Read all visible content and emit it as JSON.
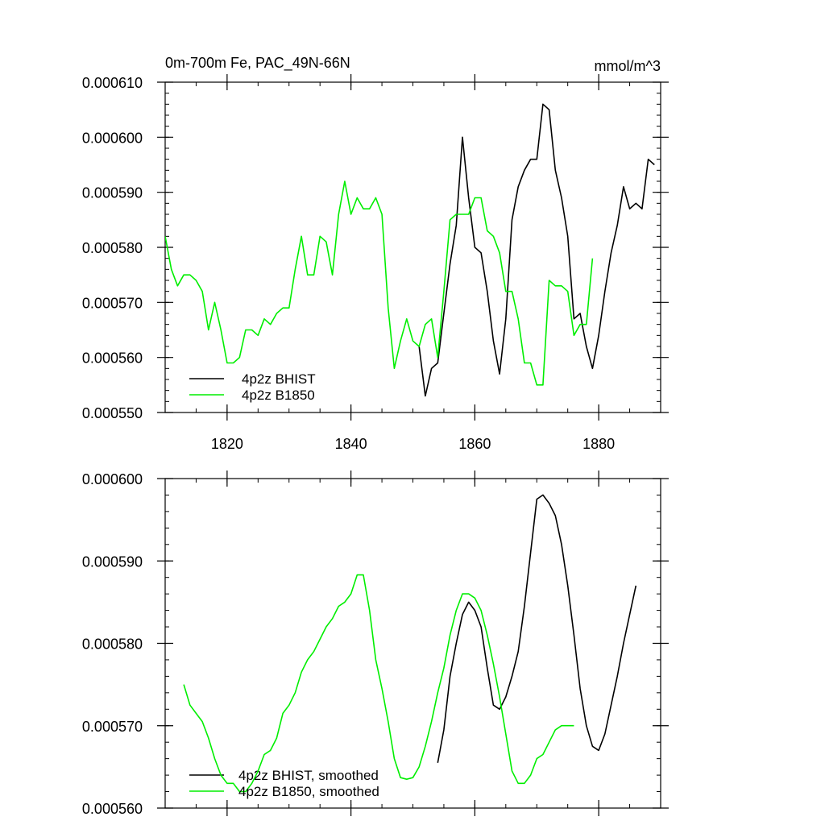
{
  "figure": {
    "title": "0m-700m Fe, PAC_49N-66N",
    "units": "mmol/m^3"
  },
  "chart_data": [
    {
      "type": "line",
      "title": "0m-700m Fe, PAC_49N-66N",
      "units_label": "mmol/m^3",
      "xlabel": "",
      "ylabel": "",
      "xlim": [
        1810,
        1890
      ],
      "ylim": [
        0.00055,
        0.00061
      ],
      "x_ticks": [
        1820,
        1840,
        1860,
        1880
      ],
      "x_tick_labels": [
        "1820",
        "1840",
        "1860",
        "1880"
      ],
      "y_ticks": [
        0.00055,
        0.00056,
        0.00057,
        0.00058,
        0.00059,
        0.0006,
        0.00061
      ],
      "y_tick_labels": [
        "0.000550",
        "0.000560",
        "0.000570",
        "0.000580",
        "0.000590",
        "0.000600",
        "0.000610"
      ],
      "legend_position": "bottom-left",
      "series": [
        {
          "name": "4p2z BHIST",
          "color": "#000000",
          "x": [
            1851,
            1852,
            1853,
            1854,
            1855,
            1856,
            1857,
            1858,
            1859,
            1860,
            1861,
            1862,
            1863,
            1864,
            1865,
            1866,
            1867,
            1868,
            1869,
            1870,
            1871,
            1872,
            1873,
            1874,
            1875,
            1876,
            1877,
            1878,
            1879,
            1880,
            1881,
            1882,
            1883,
            1884,
            1885,
            1886,
            1887,
            1888,
            1889
          ],
          "y": [
            0.000562,
            0.000553,
            0.000558,
            0.000559,
            0.000568,
            0.000577,
            0.000584,
            0.0006,
            0.000589,
            0.00058,
            0.000579,
            0.000572,
            0.000563,
            0.000557,
            0.000567,
            0.000585,
            0.000591,
            0.000594,
            0.000596,
            0.000596,
            0.000606,
            0.000605,
            0.000594,
            0.000589,
            0.000582,
            0.000567,
            0.000568,
            0.000562,
            0.000558,
            0.000564,
            0.000572,
            0.000579,
            0.000584,
            0.000591,
            0.000587,
            0.000588,
            0.000587,
            0.000596,
            0.000595
          ]
        },
        {
          "name": "4p2z B1850",
          "color": "#00ee00",
          "x": [
            1810,
            1811,
            1812,
            1813,
            1814,
            1815,
            1816,
            1817,
            1818,
            1819,
            1820,
            1821,
            1822,
            1823,
            1824,
            1825,
            1826,
            1827,
            1828,
            1829,
            1830,
            1831,
            1832,
            1833,
            1834,
            1835,
            1836,
            1837,
            1838,
            1839,
            1840,
            1841,
            1842,
            1843,
            1844,
            1845,
            1846,
            1847,
            1848,
            1849,
            1850,
            1851,
            1852,
            1853,
            1854,
            1855,
            1856,
            1857,
            1858,
            1859,
            1860,
            1861,
            1862,
            1863,
            1864,
            1865,
            1866,
            1867,
            1868,
            1869,
            1870,
            1871,
            1872,
            1873,
            1874,
            1875,
            1876,
            1877,
            1878,
            1879
          ],
          "y": [
            0.000582,
            0.000576,
            0.000573,
            0.000575,
            0.000575,
            0.000574,
            0.000572,
            0.000565,
            0.00057,
            0.000565,
            0.000559,
            0.000559,
            0.00056,
            0.000565,
            0.000565,
            0.000564,
            0.000567,
            0.000566,
            0.000568,
            0.000569,
            0.000569,
            0.000576,
            0.000582,
            0.000575,
            0.000575,
            0.000582,
            0.000581,
            0.000575,
            0.000586,
            0.000592,
            0.000586,
            0.000589,
            0.000587,
            0.000587,
            0.000589,
            0.000586,
            0.000569,
            0.000558,
            0.000563,
            0.000567,
            0.000563,
            0.000562,
            0.000566,
            0.000567,
            0.00056,
            0.000572,
            0.000585,
            0.000586,
            0.000586,
            0.000586,
            0.000589,
            0.000589,
            0.000583,
            0.000582,
            0.000579,
            0.000572,
            0.000572,
            0.000567,
            0.000559,
            0.000559,
            0.000555,
            0.000555,
            0.000574,
            0.000573,
            0.000573,
            0.000572,
            0.000564,
            0.000566,
            0.000566,
            0.000578
          ]
        }
      ]
    },
    {
      "type": "line",
      "title": "",
      "xlabel": "",
      "ylabel": "",
      "xlim": [
        1810,
        1890
      ],
      "ylim": [
        0.00056,
        0.0006
      ],
      "x_ticks": [
        1820,
        1840,
        1860,
        1880
      ],
      "x_tick_labels": [],
      "y_ticks": [
        0.00056,
        0.00057,
        0.00058,
        0.00059,
        0.0006
      ],
      "y_tick_labels": [
        "0.000560",
        "0.000570",
        "0.000580",
        "0.000590",
        "0.000600"
      ],
      "legend_position": "bottom-left",
      "series": [
        {
          "name": "4p2z BHIST, smoothed",
          "color": "#000000",
          "x": [
            1854,
            1855,
            1856,
            1857,
            1858,
            1859,
            1860,
            1861,
            1862,
            1863,
            1864,
            1865,
            1866,
            1867,
            1868,
            1869,
            1870,
            1871,
            1872,
            1873,
            1874,
            1875,
            1876,
            1877,
            1878,
            1879,
            1880,
            1881,
            1882,
            1883,
            1884,
            1885,
            1886
          ],
          "y": [
            0.0005655,
            0.0005695,
            0.000576,
            0.00058,
            0.0005835,
            0.000585,
            0.000584,
            0.000582,
            0.000577,
            0.0005725,
            0.000572,
            0.0005735,
            0.000576,
            0.000579,
            0.0005845,
            0.000591,
            0.0005975,
            0.000598,
            0.000597,
            0.0005955,
            0.000592,
            0.000587,
            0.000581,
            0.0005745,
            0.00057,
            0.0005675,
            0.000567,
            0.000569,
            0.0005725,
            0.000576,
            0.00058,
            0.0005835,
            0.000587
          ]
        },
        {
          "name": "4p2z B1850, smoothed",
          "color": "#00ee00",
          "x": [
            1813,
            1814,
            1815,
            1816,
            1817,
            1818,
            1819,
            1820,
            1821,
            1822,
            1823,
            1824,
            1825,
            1826,
            1827,
            1828,
            1829,
            1830,
            1831,
            1832,
            1833,
            1834,
            1835,
            1836,
            1837,
            1838,
            1839,
            1840,
            1841,
            1842,
            1843,
            1844,
            1845,
            1846,
            1847,
            1848,
            1849,
            1850,
            1851,
            1852,
            1853,
            1854,
            1855,
            1856,
            1857,
            1858,
            1859,
            1860,
            1861,
            1862,
            1863,
            1864,
            1865,
            1866,
            1867,
            1868,
            1869,
            1870,
            1871,
            1872,
            1873,
            1874,
            1875,
            1876
          ],
          "y": [
            0.000575,
            0.0005725,
            0.0005715,
            0.0005705,
            0.0005685,
            0.000566,
            0.000564,
            0.000563,
            0.000563,
            0.000562,
            0.000562,
            0.000563,
            0.0005645,
            0.0005665,
            0.000567,
            0.0005685,
            0.0005715,
            0.0005725,
            0.000574,
            0.0005765,
            0.000578,
            0.000579,
            0.0005805,
            0.000582,
            0.000583,
            0.0005845,
            0.000585,
            0.000586,
            0.0005883,
            0.0005883,
            0.000584,
            0.000578,
            0.0005745,
            0.0005705,
            0.000566,
            0.0005637,
            0.0005635,
            0.0005637,
            0.000565,
            0.0005675,
            0.0005705,
            0.000574,
            0.000577,
            0.000581,
            0.000584,
            0.000586,
            0.000586,
            0.0005855,
            0.000584,
            0.000581,
            0.0005775,
            0.0005735,
            0.000569,
            0.0005645,
            0.000563,
            0.000563,
            0.000564,
            0.000566,
            0.0005665,
            0.000568,
            0.0005695,
            0.00057,
            0.00057,
            0.00057
          ]
        }
      ]
    }
  ]
}
